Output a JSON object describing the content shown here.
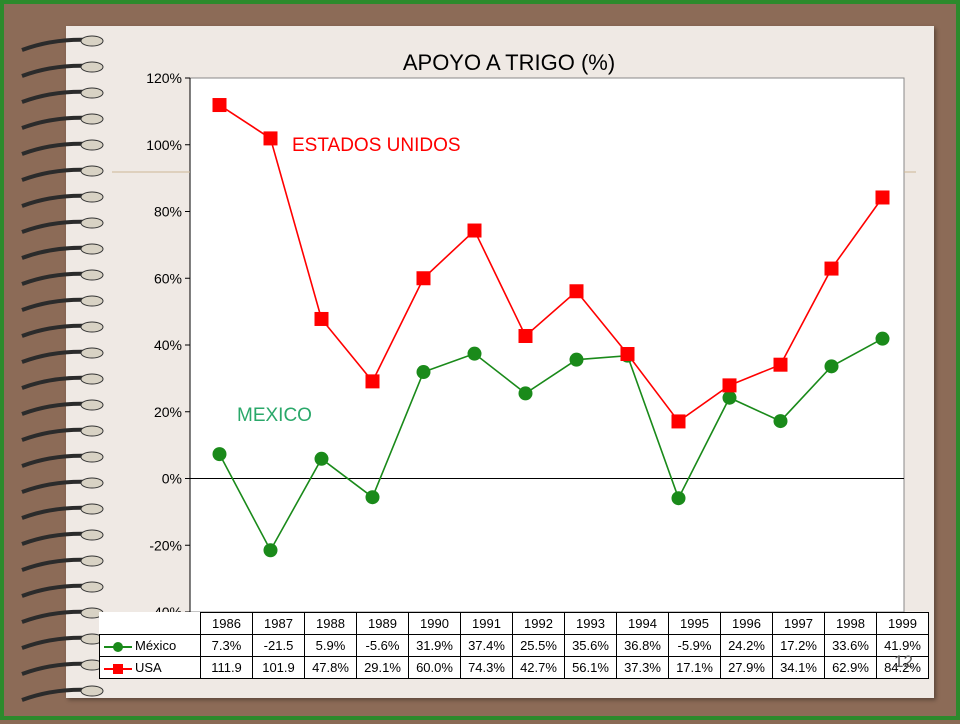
{
  "colors": {
    "mexico": "#1a8a1a",
    "usa": "#ff0000",
    "frame": "#2c8a2c",
    "background": "#8c6b57",
    "paper": "#efe9e4"
  },
  "chart_data": {
    "type": "line",
    "title": "APOYO A TRIGO (%)",
    "categories": [
      "1986",
      "1987",
      "1988",
      "1989",
      "1990",
      "1991",
      "1992",
      "1993",
      "1994",
      "1995",
      "1996",
      "1997",
      "1998",
      "1999"
    ],
    "ylim": [
      -40,
      120
    ],
    "yticks": [
      "-40%",
      "-20%",
      "0%",
      "20%",
      "40%",
      "60%",
      "80%",
      "100%",
      "120%"
    ],
    "ytick_values": [
      -40,
      -20,
      0,
      20,
      40,
      60,
      80,
      100,
      120
    ],
    "grid": false,
    "series": [
      {
        "name": "México",
        "annotation": "MEXICO",
        "marker": "circle",
        "color": "#1a8a1a",
        "values": [
          7.3,
          -21.5,
          5.9,
          -5.6,
          31.9,
          37.4,
          25.5,
          35.6,
          36.8,
          -5.9,
          24.2,
          17.2,
          33.6,
          41.9
        ],
        "table_labels": [
          "7.3%",
          "-21.5",
          "5.9%",
          "-5.6%",
          "31.9%",
          "37.4%",
          "25.5%",
          "35.6%",
          "36.8%",
          "-5.9%",
          "24.2%",
          "17.2%",
          "33.6%",
          "41.9%"
        ]
      },
      {
        "name": "USA",
        "annotation": "ESTADOS UNIDOS",
        "marker": "square",
        "color": "#ff0000",
        "values": [
          111.9,
          101.9,
          47.8,
          29.1,
          60.0,
          74.3,
          42.7,
          56.1,
          37.3,
          17.1,
          27.9,
          34.1,
          62.9,
          84.2
        ],
        "table_labels": [
          "111.9",
          "101.9",
          "47.8%",
          "29.1%",
          "60.0%",
          "74.3%",
          "42.7%",
          "56.1%",
          "37.3%",
          "17.1%",
          "27.9%",
          "34.1%",
          "62.9%",
          "84.2%"
        ]
      }
    ]
  },
  "slide_number": "12"
}
